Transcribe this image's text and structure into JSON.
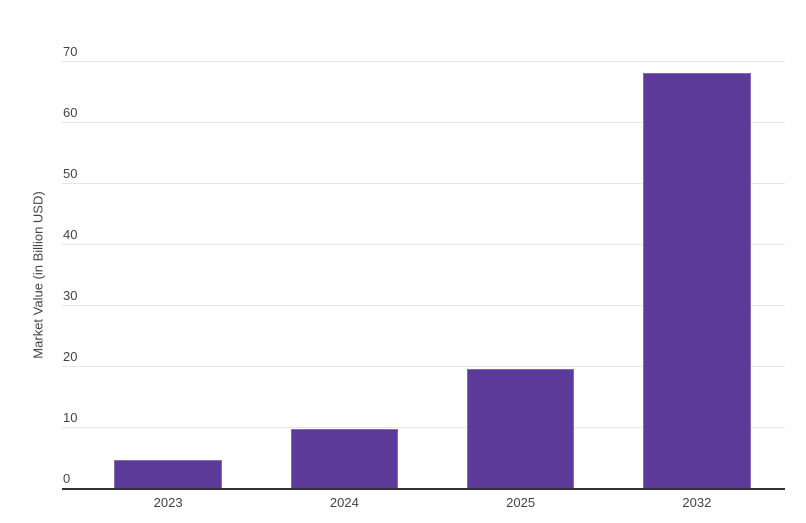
{
  "chart_data": {
    "type": "bar",
    "categories": [
      "2023",
      "2024",
      "2025",
      "2032"
    ],
    "values": [
      4.7,
      9.8,
      19.7,
      68.2
    ],
    "title": "",
    "xlabel": "",
    "ylabel": "Market Value (in Billion USD)",
    "ylim": [
      0,
      70
    ],
    "yticks": [
      0,
      10,
      20,
      30,
      40,
      50,
      60,
      70
    ],
    "grid": true,
    "legend_position": "none",
    "bar_color": "#5b3a9a",
    "gridline_color": "#e6e6e6",
    "axis_line_color": "#333333",
    "tick_label_color": "#444444",
    "background_color": "#ffffff"
  }
}
